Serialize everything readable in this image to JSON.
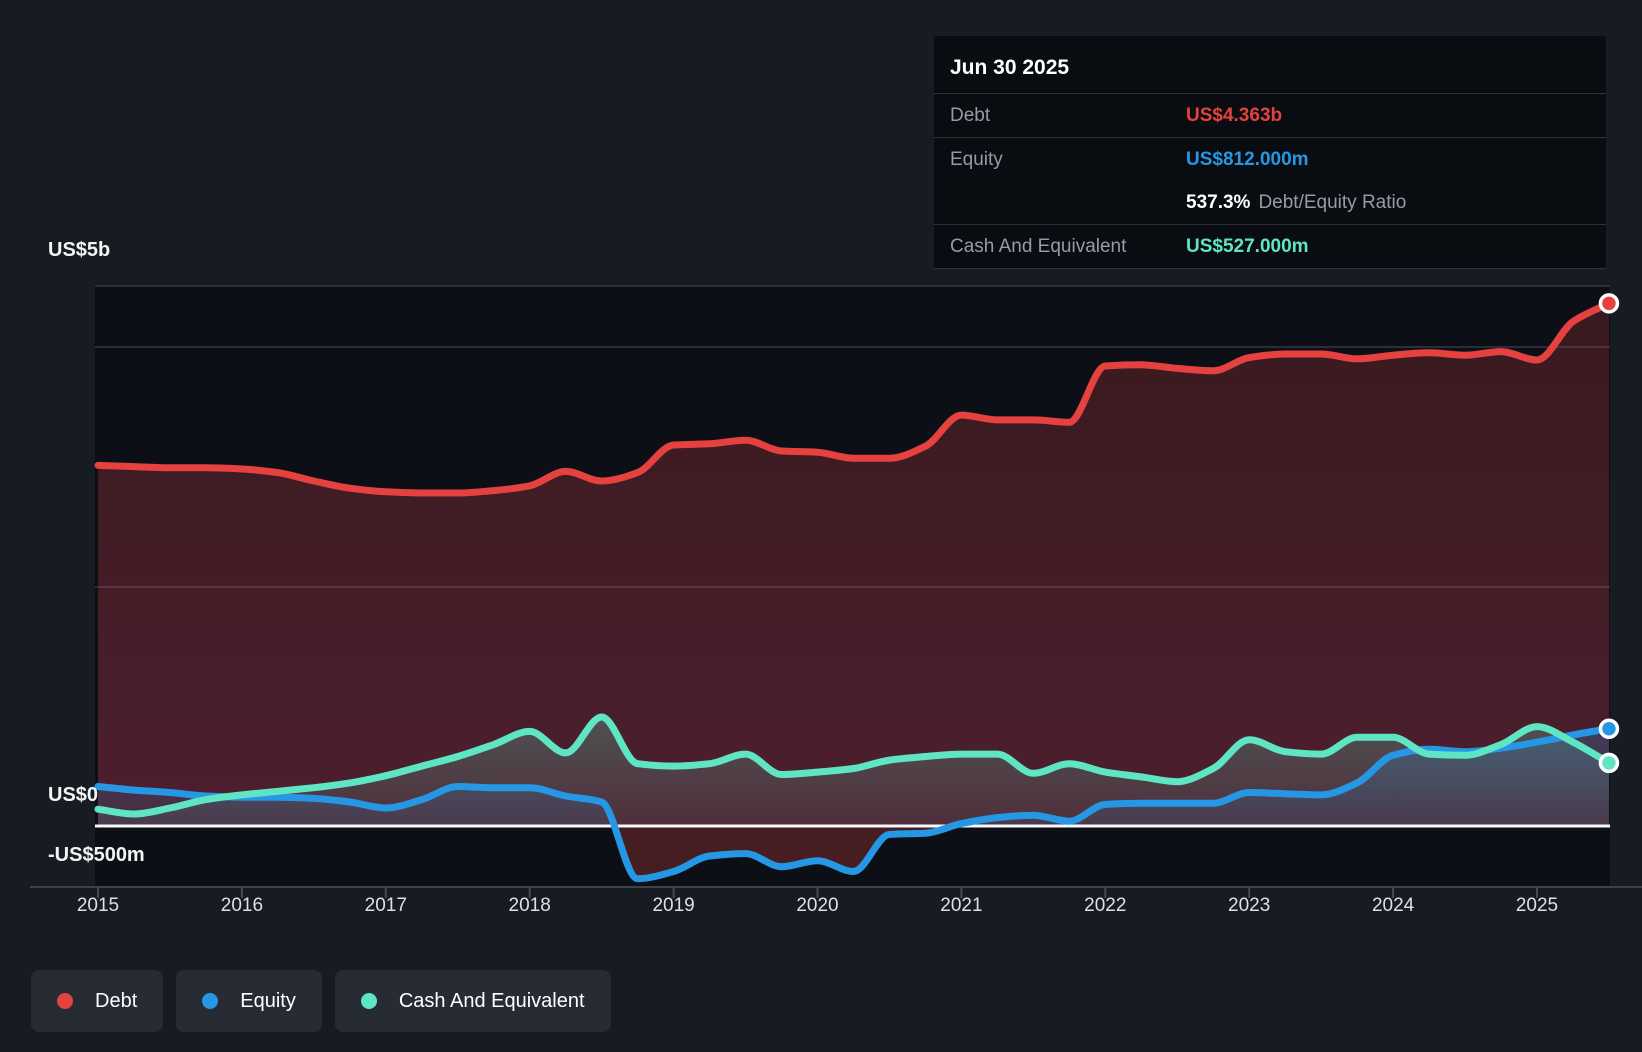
{
  "tooltip": {
    "date": "Jun 30 2025",
    "rows": {
      "debt": {
        "label": "Debt",
        "value": "US$4.363b"
      },
      "equity": {
        "label": "Equity",
        "value": "US$812.000m"
      },
      "ratio": {
        "value": "537.3%",
        "label": "Debt/Equity Ratio"
      },
      "cash": {
        "label": "Cash And Equivalent",
        "value": "US$527.000m"
      }
    }
  },
  "legend": {
    "items": [
      {
        "label": "Debt"
      },
      {
        "label": "Equity"
      },
      {
        "label": "Cash And Equivalent"
      }
    ]
  },
  "colors": {
    "debt": "#e5413e",
    "equity": "#2697e4",
    "cash": "#5fe5c3",
    "negative_equity": "#e5413e",
    "zero_line": "#f7f8fa",
    "grid_line": "#333943",
    "axis_line": "#3c424b",
    "axis_text": "#dde0e4",
    "y_label_text": "#f2f4f6"
  },
  "y_axis": {
    "labels": [
      "US$5b",
      "US$0",
      "-US$500m"
    ]
  },
  "x_axis": {
    "years": [
      "2015",
      "2016",
      "2017",
      "2018",
      "2019",
      "2020",
      "2021",
      "2022",
      "2023",
      "2024",
      "2025"
    ]
  },
  "chart_data": {
    "type": "area",
    "x_unit": "year",
    "y_unit": "US$ billions",
    "ylim": [
      -0.5,
      5
    ],
    "grid": "horizontal",
    "legend_position": "bottom-left",
    "last_point_date": "Jun 30 2025",
    "x": [
      2015.0,
      2015.25,
      2015.5,
      2015.75,
      2016.0,
      2016.25,
      2016.5,
      2016.75,
      2017.0,
      2017.25,
      2017.5,
      2017.75,
      2018.0,
      2018.25,
      2018.5,
      2018.75,
      2019.0,
      2019.25,
      2019.5,
      2019.75,
      2020.0,
      2020.25,
      2020.5,
      2020.75,
      2021.0,
      2021.25,
      2021.5,
      2021.75,
      2022.0,
      2022.25,
      2022.5,
      2022.75,
      2023.0,
      2023.25,
      2023.5,
      2023.75,
      2024.0,
      2024.25,
      2024.5,
      2024.75,
      2025.0,
      2025.25,
      2025.5
    ],
    "series": [
      {
        "name": "Debt",
        "values": [
          3.01,
          3.0,
          2.99,
          2.99,
          2.98,
          2.95,
          2.88,
          2.82,
          2.79,
          2.78,
          2.78,
          2.8,
          2.84,
          2.96,
          2.88,
          2.95,
          3.18,
          3.19,
          3.22,
          3.13,
          3.12,
          3.07,
          3.07,
          3.17,
          3.43,
          3.39,
          3.39,
          3.37,
          3.84,
          3.85,
          3.82,
          3.8,
          3.91,
          3.94,
          3.94,
          3.9,
          3.93,
          3.95,
          3.93,
          3.96,
          3.89,
          4.21,
          4.363
        ]
      },
      {
        "name": "Equity",
        "values": [
          0.33,
          0.3,
          0.28,
          0.25,
          0.24,
          0.24,
          0.23,
          0.2,
          0.15,
          0.22,
          0.33,
          0.32,
          0.32,
          0.25,
          0.2,
          -0.44,
          -0.38,
          -0.25,
          -0.23,
          -0.34,
          -0.29,
          -0.38,
          -0.07,
          -0.06,
          0.02,
          0.07,
          0.09,
          0.04,
          0.18,
          0.19,
          0.19,
          0.19,
          0.28,
          0.27,
          0.26,
          0.36,
          0.59,
          0.64,
          0.62,
          0.65,
          0.7,
          0.76,
          0.812
        ]
      },
      {
        "name": "Cash And Equivalent",
        "values": [
          0.14,
          0.1,
          0.15,
          0.22,
          0.26,
          0.29,
          0.32,
          0.36,
          0.42,
          0.5,
          0.58,
          0.68,
          0.79,
          0.61,
          0.91,
          0.52,
          0.5,
          0.52,
          0.6,
          0.43,
          0.45,
          0.48,
          0.55,
          0.58,
          0.6,
          0.6,
          0.44,
          0.52,
          0.45,
          0.41,
          0.37,
          0.48,
          0.72,
          0.62,
          0.6,
          0.74,
          0.74,
          0.6,
          0.59,
          0.68,
          0.83,
          0.7,
          0.527
        ]
      }
    ]
  }
}
